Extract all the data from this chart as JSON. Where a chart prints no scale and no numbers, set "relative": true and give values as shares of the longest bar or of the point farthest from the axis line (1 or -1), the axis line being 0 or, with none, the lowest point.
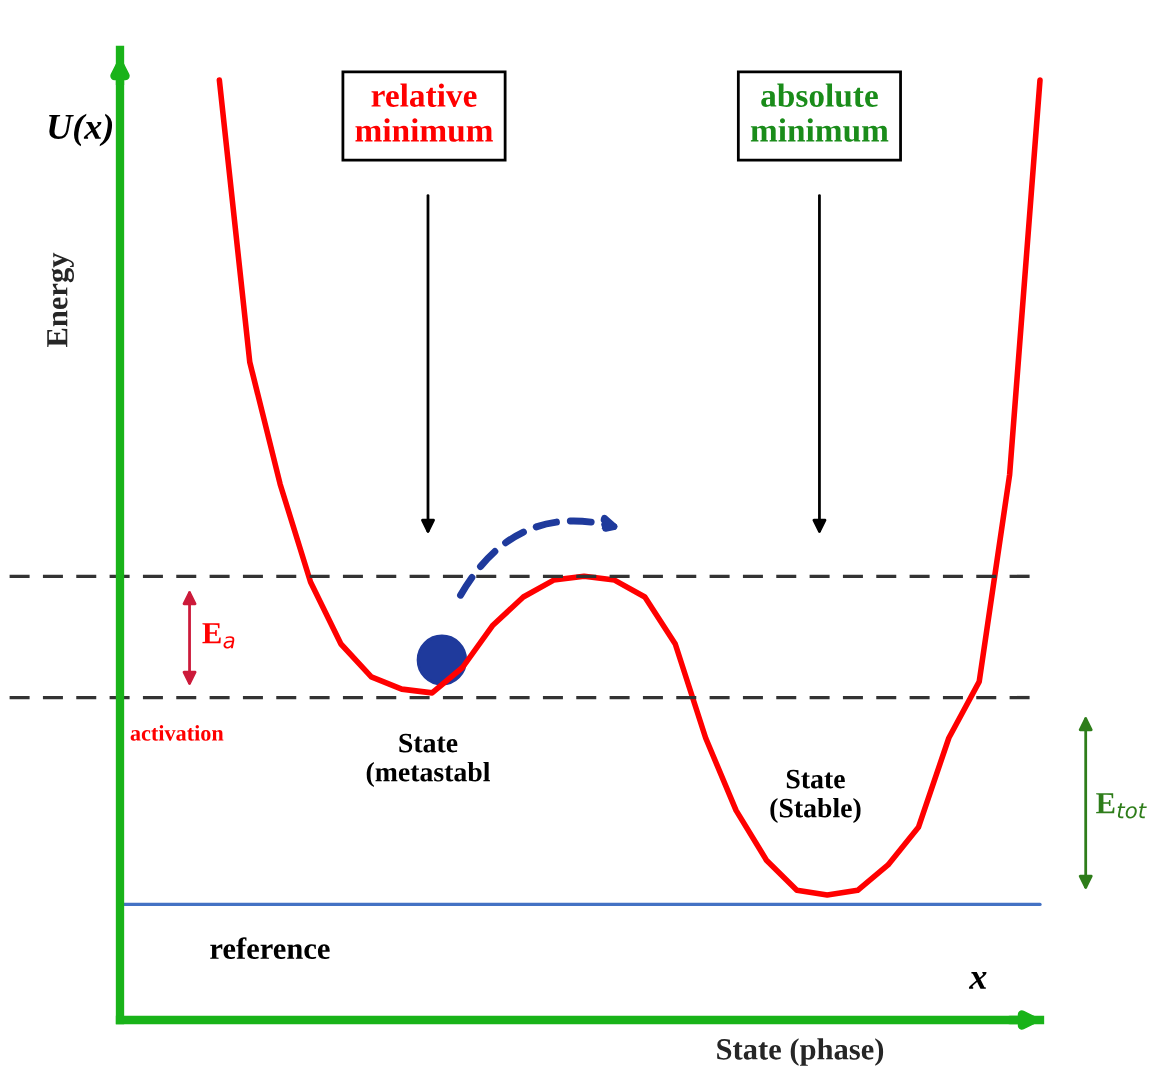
{
  "chart_data": {
    "type": "line",
    "relative": true,
    "xlabel": "State (phase)",
    "ylabel": "Energy",
    "categories": [
      null,
      null,
      null,
      null,
      null,
      null,
      null,
      null,
      null,
      null,
      null,
      null,
      null,
      null,
      null,
      null,
      null,
      null,
      null,
      null,
      null,
      null,
      null,
      null,
      null,
      null,
      null,
      null
    ],
    "series": [
      {
        "color": "#ff0000",
        "values": [
          1.0,
          0.7,
          0.57,
          0.466,
          0.4,
          0.365,
          0.352,
          0.348,
          0.375,
          0.42,
          0.45,
          0.468,
          0.472,
          0.468,
          0.45,
          0.4,
          0.3,
          0.223,
          0.17,
          0.138,
          0.133,
          0.138,
          0.165,
          0.205,
          0.3,
          0.36,
          0.58,
          1.0
        ]
      }
    ],
    "ref_lines": [
      {
        "axis": "y",
        "value": 0.472,
        "color": "#333333",
        "line_style": "dashed"
      },
      {
        "axis": "y",
        "value": 0.343,
        "label": "activation",
        "color": "#333333",
        "line_style": "dashed"
      },
      {
        "axis": "y",
        "value": 0.123,
        "label": "reference",
        "color": "#4472c4",
        "line_style": "solid"
      }
    ],
    "annotations": [
      "U(x)",
      "relative\nminimum",
      "absolute\nminimum",
      "E$_{a}$",
      "State\n(metastabl",
      "State\n(Stable)",
      "E$_{tot}$",
      "x"
    ],
    "line_style": "solid",
    "marker": "none",
    "grid": false,
    "legend": false
  }
}
